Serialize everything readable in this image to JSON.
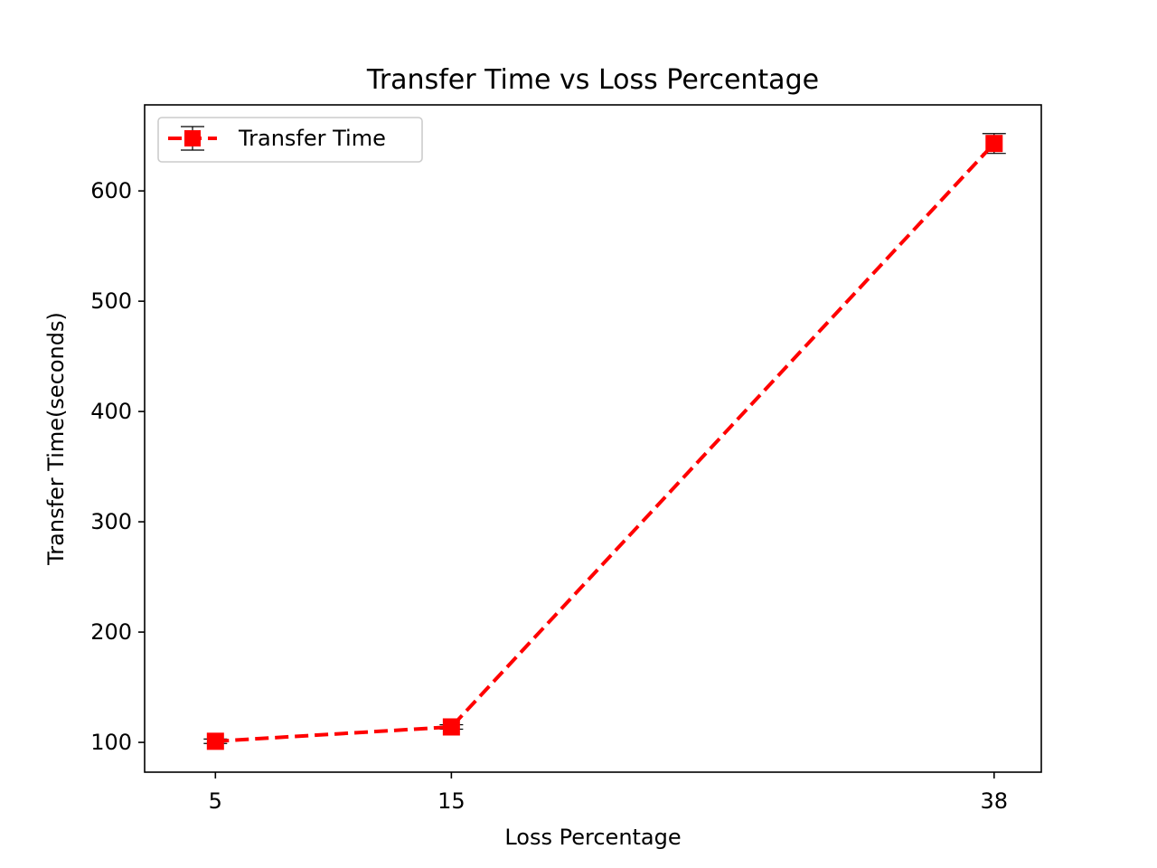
{
  "chart_data": {
    "type": "line",
    "title": "Transfer Time vs Loss Percentage",
    "xlabel": "Loss Percentage",
    "ylabel": "Transfer Time(seconds)",
    "x": [
      5,
      15,
      38
    ],
    "xticks": [
      5,
      15,
      38
    ],
    "yticks": [
      100,
      200,
      300,
      400,
      500,
      600
    ],
    "xlim": [
      2,
      40
    ],
    "ylim": [
      73,
      678
    ],
    "series": [
      {
        "name": "Transfer Time",
        "values": [
          101,
          114,
          643
        ],
        "errors": [
          2,
          2,
          9
        ],
        "color": "#ff0000",
        "line_style": "dashed",
        "marker": "square",
        "errorbar_color": "#000000"
      }
    ],
    "grid": false,
    "legend": "top-left"
  }
}
